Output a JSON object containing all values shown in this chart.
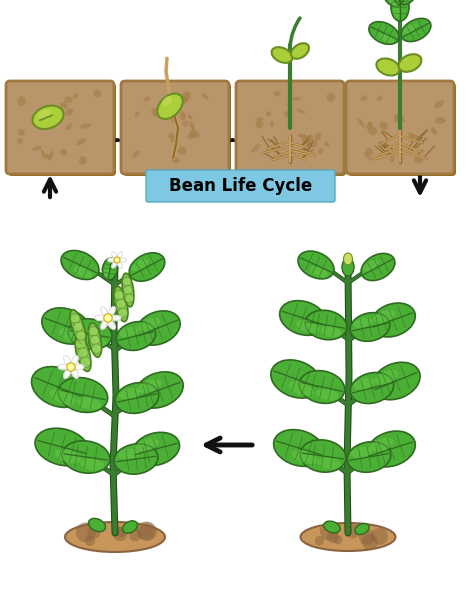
{
  "title": "Bean Life Cycle",
  "title_bg_color": "#7EC8E3",
  "title_text_color": "#000000",
  "bg_color": "#FFFFFF",
  "soil_color": "#B8956A",
  "soil_dark": "#8B6914",
  "soil_mid": "#A07840",
  "bean_color": "#AACF3A",
  "bean_dark": "#6B8E23",
  "bean_light": "#C8E060",
  "stem_color": "#3A7D30",
  "stem_dark": "#1A5010",
  "leaf_color": "#4CAF35",
  "leaf_dark": "#2E6B20",
  "leaf_light": "#6ED050",
  "root_color": "#C8A060",
  "root_dark": "#906830",
  "arrow_color": "#111111",
  "dirt_color": "#C8965A",
  "dirt_dark": "#8B6340",
  "dirt_light": "#E0B070",
  "flower_color": "#FFFFFF",
  "pod_color": "#7DC44E",
  "pod_dark": "#4A8020",
  "pod_light": "#A0D860"
}
